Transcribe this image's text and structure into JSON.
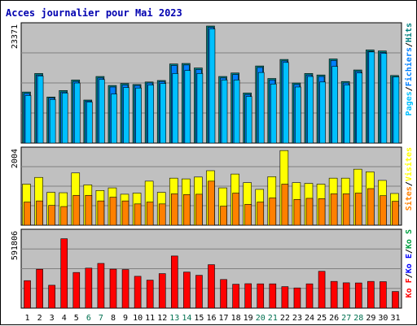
{
  "chart_data": {
    "type": "bar",
    "title": "Acces journalier pour Mai 2023",
    "categories": [
      "1",
      "2",
      "3",
      "4",
      "5",
      "6",
      "7",
      "8",
      "9",
      "10",
      "11",
      "12",
      "13",
      "14",
      "15",
      "16",
      "17",
      "18",
      "19",
      "20",
      "21",
      "22",
      "23",
      "24",
      "25",
      "26",
      "27",
      "28",
      "29",
      "30",
      "31"
    ],
    "weekend_days": [
      6,
      7,
      13,
      14,
      20,
      21,
      27,
      28
    ],
    "panels": [
      {
        "id": "hits-files-pages",
        "ymax": 23371,
        "ymax_label": "23371",
        "legend": [
          "Pages",
          "/",
          "Fichiers",
          "/",
          "Hits"
        ],
        "legend_colors": [
          "#00c0ff",
          "#000000",
          "#0080ff",
          "#000000",
          "#008080"
        ],
        "series": [
          {
            "name": "Hits",
            "color": "#008080",
            "values": [
              10200,
              13900,
              9200,
              10500,
              12600,
              8600,
              13300,
              11500,
              11900,
              11700,
              12200,
              12500,
              15800,
              15900,
              15000,
              23400,
              13300,
              14000,
              10000,
              15400,
              12900,
              16700,
              12000,
              13900,
              13600,
              16800,
              12300,
              14600,
              18600,
              18400,
              13500
            ]
          },
          {
            "name": "Fichiers",
            "color": "#0080ff",
            "values": [
              9900,
              13600,
              9000,
              10200,
              12300,
              8400,
              13000,
              11200,
              11600,
              11500,
              12000,
              12300,
              15500,
              15600,
              14700,
              23100,
              13000,
              13700,
              9700,
              15100,
              12600,
              16400,
              11700,
              13600,
              13300,
              16500,
              12000,
              14300,
              18300,
              18100,
              13200
            ]
          },
          {
            "name": "Pages",
            "color": "#00c0ff",
            "values": [
              9500,
              13400,
              8700,
              10000,
              12000,
              8200,
              12700,
              9800,
              11100,
              11000,
              11600,
              11900,
              13900,
              14500,
              13900,
              22800,
              12600,
              12600,
              9300,
              14100,
              11800,
              16100,
              11200,
              13300,
              12200,
              15300,
              11600,
              14000,
              18200,
              17900,
              13200
            ]
          }
        ]
      },
      {
        "id": "visits-sites",
        "ymax": 2004,
        "ymax_label": "2004",
        "legend": [
          "Sites",
          "/",
          "Visites"
        ],
        "legend_colors": [
          "#ff8000",
          "#000000",
          "#ffff00"
        ],
        "series": [
          {
            "name": "Visites",
            "color": "#ffff00",
            "values": [
              1100,
              1280,
              880,
              870,
              1400,
              1080,
              930,
              1000,
              830,
              860,
              1180,
              880,
              1260,
              1240,
              1290,
              1460,
              1000,
              1370,
              1140,
              960,
              1300,
              2000,
              1140,
              1120,
              1100,
              1260,
              1260,
              1500,
              1430,
              1200,
              850
            ]
          },
          {
            "name": "Sites",
            "color": "#ff8000",
            "values": [
              620,
              650,
              530,
              500,
              800,
              800,
              650,
              750,
              650,
              570,
              620,
              570,
              840,
              820,
              830,
              1180,
              510,
              860,
              560,
              620,
              730,
              1100,
              690,
              720,
              710,
              840,
              840,
              860,
              980,
              790,
              640
            ]
          }
        ]
      },
      {
        "id": "traffic",
        "ymax": 591806,
        "ymax_label": "591806",
        "legend": [
          "Ko F",
          "/",
          "Ko E",
          "/",
          "Ko S"
        ],
        "legend_colors": [
          "#ff0000",
          "#000000",
          "#0000ff",
          "#000000",
          "#00a040"
        ],
        "series": [
          {
            "name": "Ko F",
            "color": "#ff0000",
            "values": [
              215000,
              304000,
              179000,
              543000,
              279000,
              313000,
              350000,
              305000,
              302000,
              249000,
              219000,
              270000,
              408000,
              282000,
              257000,
              340000,
              224000,
              187000,
              191000,
              190000,
              190000,
              168000,
              158000,
              190000,
              288000,
              209000,
              198000,
              197000,
              209000,
              207000,
              130000
            ]
          }
        ]
      }
    ]
  }
}
